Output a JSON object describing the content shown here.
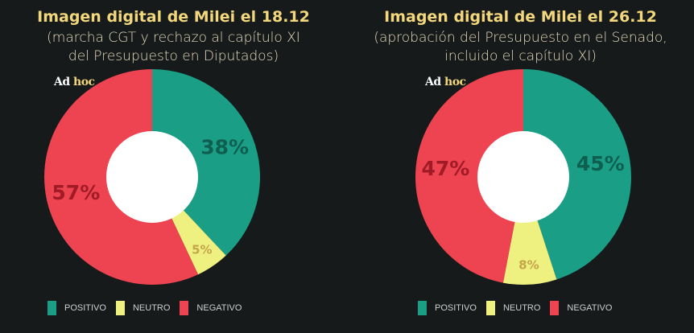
{
  "logo": "Ad hoc",
  "logo_parts": [
    "Ad",
    "hoc"
  ],
  "colors": {
    "positivo": "#1b9e86",
    "neutro": "#eef07f",
    "negativo": "#ee4350",
    "label_positivo": "#0f5f51",
    "label_neutro": "#c4a54a",
    "label_negativo": "#a11b27",
    "bg": "#161a1a"
  },
  "legend": [
    "POSITIVO",
    "NEUTRO",
    "NEGATIVO"
  ],
  "chart_data": [
    {
      "type": "pie",
      "title": "Imagen digital de Milei el 18.12",
      "subtitle": [
        "(marcha CGT y rechazo al capítulo XI",
        "del Presupuesto en Diputados)"
      ],
      "categories": [
        "POSITIVO",
        "NEUTRO",
        "NEGATIVO"
      ],
      "values": [
        38,
        5,
        57
      ],
      "labels": [
        "38%",
        "5%",
        "57%"
      ]
    },
    {
      "type": "pie",
      "title": "Imagen digital de Milei el 26.12",
      "subtitle": [
        "(aprobación del Presupuesto en el Senado,",
        "incluido el capítulo XI)"
      ],
      "categories": [
        "POSITIVO",
        "NEUTRO",
        "NEGATIVO"
      ],
      "values": [
        45,
        8,
        47
      ],
      "labels": [
        "45%",
        "8%",
        "47%"
      ]
    }
  ]
}
